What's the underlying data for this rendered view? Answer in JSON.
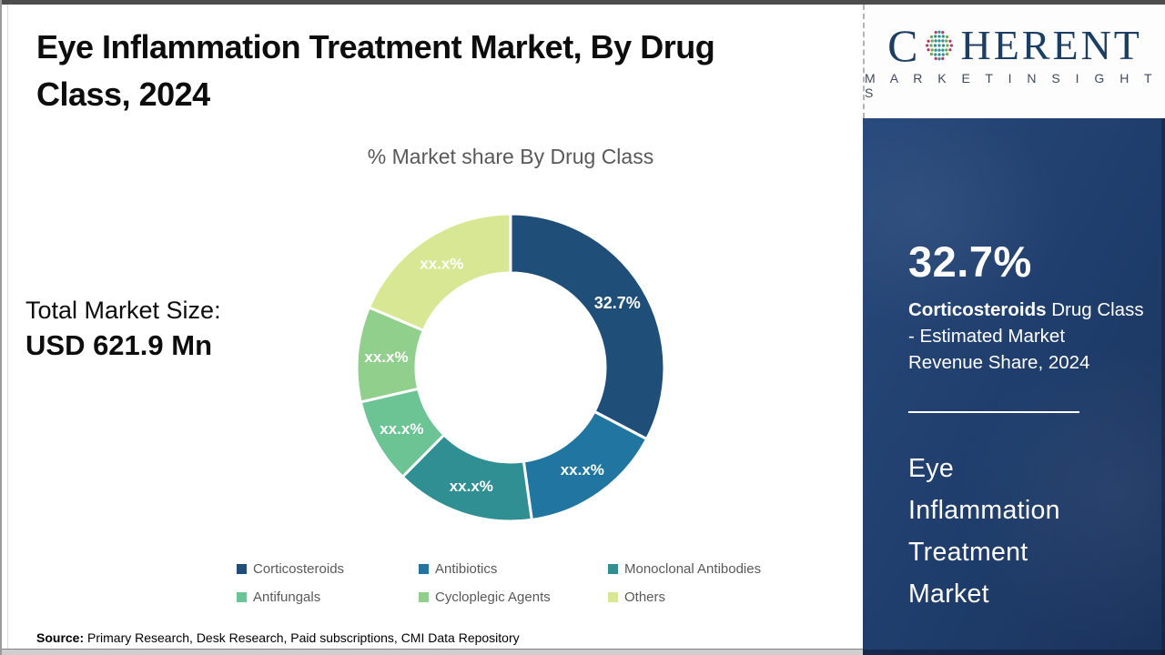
{
  "header": {
    "title": "Eye Inflammation Treatment Market, By Drug Class, 2024"
  },
  "total_market": {
    "label": "Total Market Size:",
    "value": "USD 621.9 Mn"
  },
  "chart_data": {
    "type": "pie",
    "donut": true,
    "title": "% Market share By Drug Class",
    "start_angle_deg": 0,
    "direction": "clockwise",
    "legend_position": "bottom",
    "slices": [
      {
        "name": "Corticosteroids",
        "value": 32.7,
        "label": "32.7%",
        "color": "#1f4e79"
      },
      {
        "name": "Antibiotics",
        "value": 15.1,
        "label": "xx.x%",
        "color": "#2076a0"
      },
      {
        "name": "Monoclonal Antibodies",
        "value": 14.6,
        "label": "xx.x%",
        "color": "#2f8f92"
      },
      {
        "name": "Antifungals",
        "value": 9.0,
        "label": "xx.x%",
        "color": "#6cc494"
      },
      {
        "name": "Cycloplegic Agents",
        "value": 10.0,
        "label": "xx.x%",
        "color": "#90d08c"
      },
      {
        "name": "Others",
        "value": 18.6,
        "label": "xx.x%",
        "color": "#d7e794"
      }
    ]
  },
  "source": {
    "label": "Source:",
    "text": " Primary Research, Desk Research, Paid subscriptions, CMI Data Repository"
  },
  "logo": {
    "c": "C",
    "rest": "HERENT",
    "subtitle": "M A R K E T   I N S I G H T S",
    "globe_icon": "dotted-globe"
  },
  "sidebar": {
    "stat_value": "32.7%",
    "stat_bold": "Corticosteroids",
    "stat_rest": " Drug Class\n- Estimated Market\nRevenue Share, 2024",
    "market_name": "Eye\nInflammation\nTreatment\nMarket"
  },
  "colors": {
    "panel_navy": "#1f3d6b",
    "logo_navy": "#1d3e63",
    "text_gray": "#595959"
  }
}
